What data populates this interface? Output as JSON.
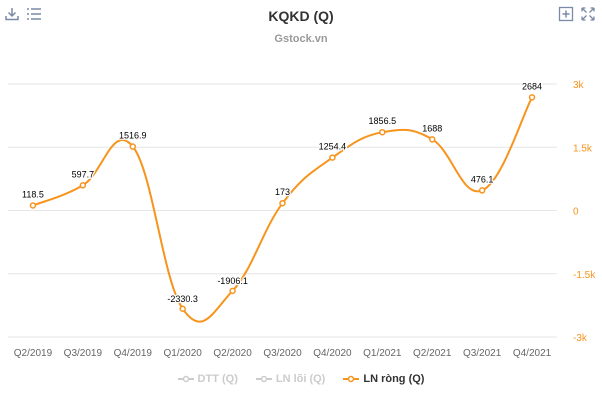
{
  "header": {
    "title": "KQKD (Q)",
    "subtitle": "Gstock.vn"
  },
  "toolbar": {
    "left": [
      {
        "name": "download-icon"
      },
      {
        "name": "menu-icon"
      }
    ],
    "right": [
      {
        "name": "zoom-in-icon"
      },
      {
        "name": "fullscreen-icon"
      }
    ]
  },
  "colors": {
    "series": "#f7941d",
    "grid": "#e6e6e6",
    "inactive": "#cccccc",
    "axis_text": "#666666"
  },
  "legend": [
    {
      "label": "DTT (Q)",
      "active": false
    },
    {
      "label": "LN lõi (Q)",
      "active": false
    },
    {
      "label": "LN ròng (Q)",
      "active": true
    }
  ],
  "chart_data": {
    "type": "line",
    "title": "KQKD (Q)",
    "subtitle": "Gstock.vn",
    "categories": [
      "Q2/2019",
      "Q3/2019",
      "Q4/2019",
      "Q1/2020",
      "Q2/2020",
      "Q3/2020",
      "Q4/2020",
      "Q1/2021",
      "Q2/2021",
      "Q3/2021",
      "Q4/2021"
    ],
    "series": [
      {
        "name": "LN ròng (Q)",
        "values": [
          118.5,
          597.7,
          1516.9,
          -2330.3,
          -1906.1,
          173,
          1254.4,
          1856.5,
          1688,
          476.1,
          2684
        ],
        "labels": [
          "118.5",
          "597.7",
          "1516.9",
          "-2330.3",
          "-1906.1",
          "173",
          "1254.4",
          "1856.5",
          "1688",
          "476.1",
          "2684"
        ]
      }
    ],
    "y_axis": {
      "position": "right",
      "min": -3000,
      "max": 3000,
      "ticks": [
        3000,
        1500,
        0,
        -1500,
        -3000
      ],
      "tick_labels": [
        "3k",
        "1.5k",
        "0",
        "-1.5k",
        "-3k"
      ]
    },
    "grid": true,
    "legend_position": "bottom-center"
  }
}
